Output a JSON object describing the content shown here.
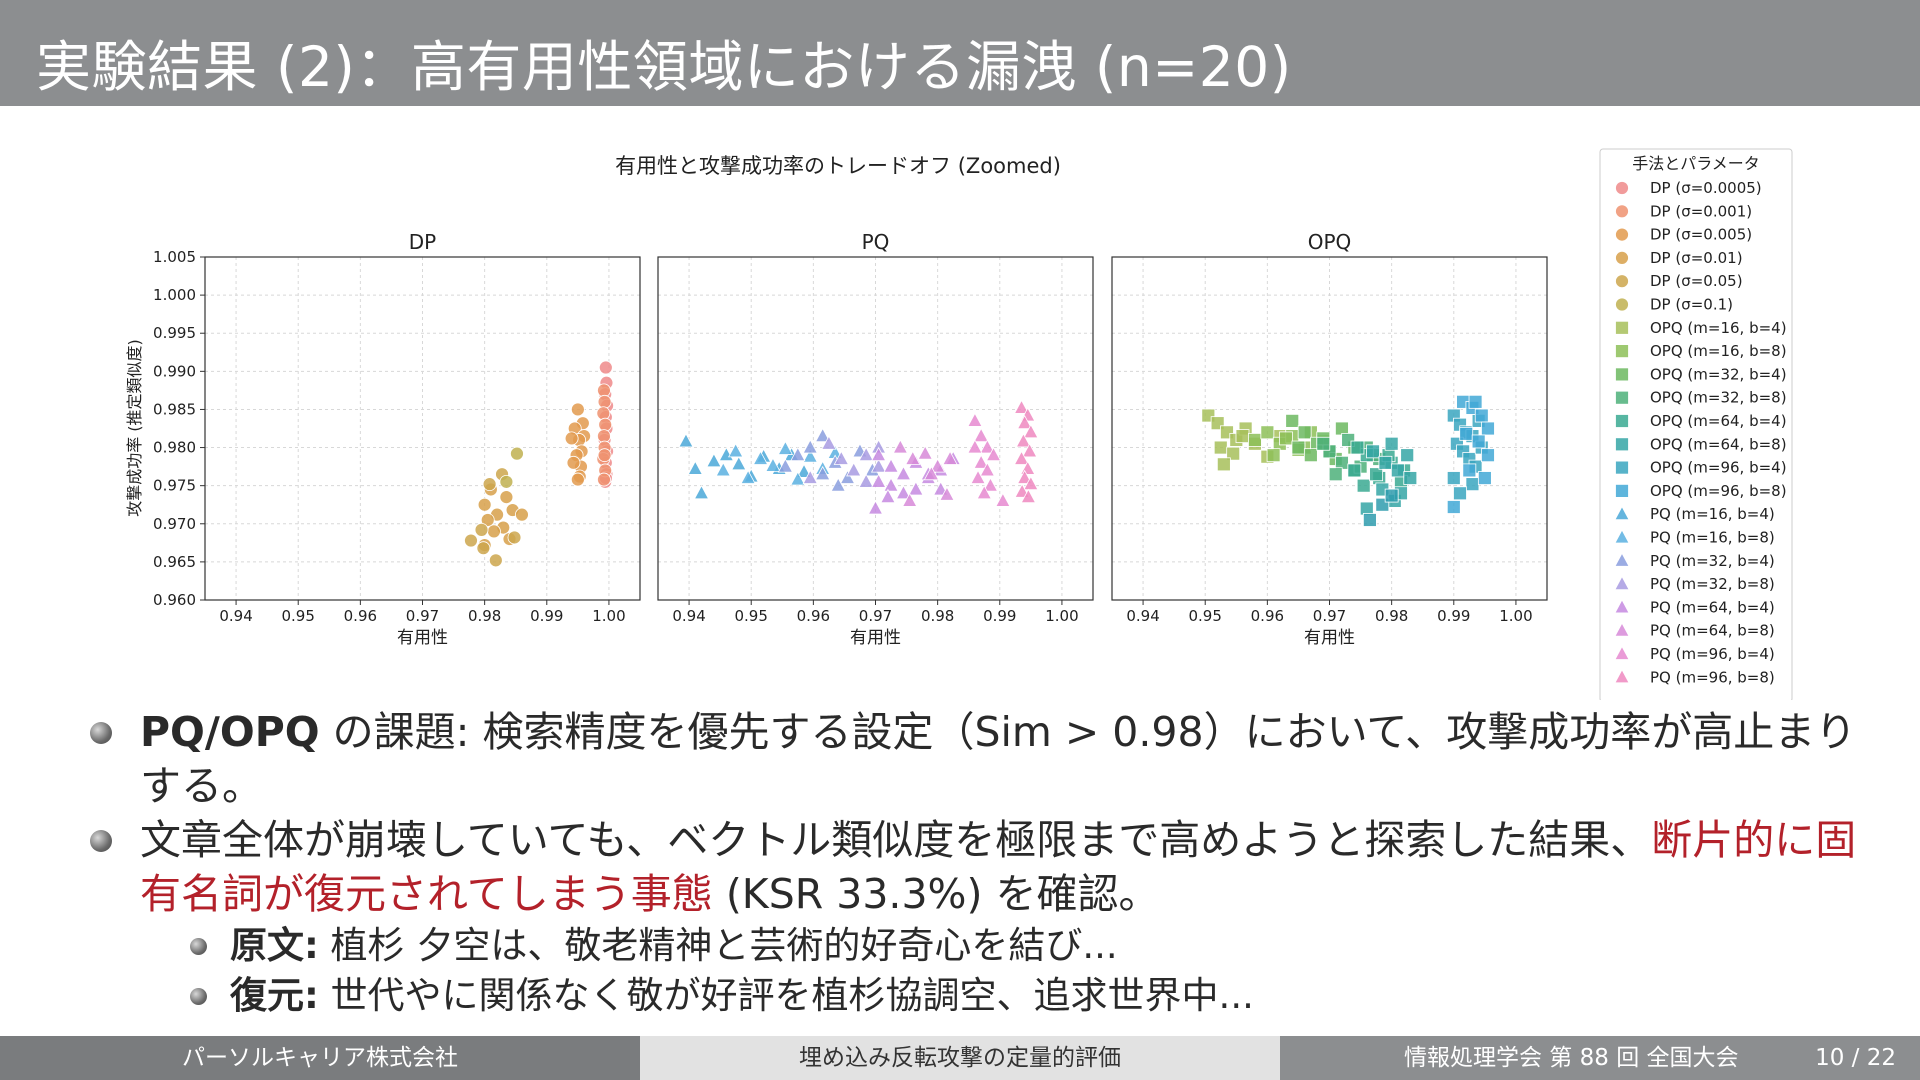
{
  "slide": {
    "title": "実験結果 (2)：高有用性領域における漏洩 (n=20)"
  },
  "bullets": [
    {
      "bold": "PQ/OPQ",
      "text": " の課題: 検索精度を優先する設定（Sim > 0.98）において、攻撃成功率が高止まりする。"
    },
    {
      "text_a": "文章全体が崩壊していても、ベクトル類似度を極限まで高めようと探索した結果、",
      "red": "断片的に固有名詞が復元されてしまう事態",
      "text_b": " (KSR 33.3%) を確認。",
      "subs": [
        {
          "label": "原文:",
          "text": " 植杉 夕空は、敬老精神と芸術的好奇心を結び..."
        },
        {
          "label": "復元:",
          "text": " 世代やに関係なく敬が好評を植杉協調空、追求世界中..."
        }
      ]
    }
  ],
  "footer": {
    "org": "パーソルキャリア株式会社",
    "topic": "埋め込み反転攻撃の定量的評価",
    "conference": "情報処理学会 第 88 回 全国大会",
    "page": "10 / 22"
  },
  "colors": {
    "title_bg": "#8c8e90",
    "highlight_red": "#b3212a"
  },
  "chart_data": {
    "type": "scatter",
    "title": "有用性と攻撃成功率のトレードオフ (Zoomed)",
    "ylabel": "攻撃成功率 (推定類似度)",
    "xlim": [
      0.935,
      1.005
    ],
    "ylim": [
      0.96,
      1.005
    ],
    "xticks": [
      "0.94",
      "0.95",
      "0.96",
      "0.97",
      "0.98",
      "0.99",
      "1.00"
    ],
    "yticks": [
      "0.960",
      "0.965",
      "0.970",
      "0.975",
      "0.980",
      "0.985",
      "0.990",
      "0.995",
      "1.000",
      "1.005"
    ],
    "grid": true,
    "legend_title": "手法とパラメータ",
    "legend_position": "right",
    "panels": [
      {
        "title": "DP",
        "xlabel": "有用性",
        "series": [
          {
            "name": "DP (σ=0.0005)",
            "color": "#ef8a8a",
            "marker": "circle",
            "x": [
              0.9995,
              0.9996,
              0.9994,
              0.9997,
              0.9995,
              0.9996,
              0.9993,
              0.9997,
              0.9995,
              0.9996,
              0.9994,
              0.9995
            ],
            "y": [
              0.9905,
              0.9885,
              0.987,
              0.9855,
              0.984,
              0.9825,
              0.981,
              0.9795,
              0.978,
              0.9765,
              0.9755,
              0.976
            ]
          },
          {
            "name": "DP (σ=0.001)",
            "color": "#ee9270",
            "marker": "circle",
            "x": [
              0.9992,
              0.9993,
              0.9991,
              0.9994,
              0.9992,
              0.9993,
              0.9991,
              0.9994,
              0.9992,
              0.9993
            ],
            "y": [
              0.9875,
              0.986,
              0.9845,
              0.983,
              0.9815,
              0.98,
              0.9785,
              0.977,
              0.9758,
              0.979
            ]
          },
          {
            "name": "DP (σ=0.005)",
            "color": "#e29a4e",
            "marker": "circle",
            "x": [
              0.995,
              0.9958,
              0.9945,
              0.996,
              0.9952,
              0.994,
              0.9956,
              0.9948,
              0.9955,
              0.9943,
              0.9953,
              0.995
            ],
            "y": [
              0.985,
              0.9832,
              0.9825,
              0.9815,
              0.981,
              0.9812,
              0.9795,
              0.979,
              0.9775,
              0.978,
              0.9762,
              0.9758
            ]
          },
          {
            "name": "DP (σ=0.01)",
            "color": "#d7a04a",
            "marker": "circle",
            "x": [
              0.981,
              0.9835,
              0.98,
              0.9845,
              0.982,
              0.9805,
              0.983,
              0.9815,
              0.984,
              0.98,
              0.986
            ],
            "y": [
              0.9745,
              0.9735,
              0.9725,
              0.9718,
              0.9712,
              0.9705,
              0.9695,
              0.969,
              0.968,
              0.9672,
              0.9712
            ]
          },
          {
            "name": "DP (σ=0.05)",
            "color": "#cca64c",
            "marker": "circle",
            "x": [
              0.9778,
              0.9798,
              0.9818,
              0.9848,
              0.9795,
              0.9828,
              0.9808
            ],
            "y": [
              0.9678,
              0.9668,
              0.9652,
              0.9682,
              0.9692,
              0.9765,
              0.9752
            ]
          },
          {
            "name": "DP (σ=0.1)",
            "color": "#c0b050",
            "marker": "circle",
            "x": [
              0.9852,
              0.9835
            ],
            "y": [
              0.9792,
              0.9755
            ]
          }
        ]
      },
      {
        "title": "PQ",
        "xlabel": "有用性",
        "series": [
          {
            "name": "PQ (m=16, b=4)",
            "color": "#4aa8d8",
            "marker": "triangle",
            "x": [
              0.9395,
              0.941,
              0.944,
              0.946,
              0.948,
              0.95,
              0.952,
              0.9545,
              0.9565,
              0.9585,
              0.942
            ],
            "y": [
              0.9808,
              0.9772,
              0.9782,
              0.979,
              0.9778,
              0.9762,
              0.9788,
              0.9772,
              0.979,
              0.9768,
              0.974
            ]
          },
          {
            "name": "PQ (m=16, b=8)",
            "color": "#5ab0e0",
            "marker": "triangle",
            "x": [
              0.9455,
              0.9475,
              0.9495,
              0.9515,
              0.9535,
              0.9555,
              0.9575,
              0.9595,
              0.9615,
              0.9635
            ],
            "y": [
              0.977,
              0.9795,
              0.976,
              0.9785,
              0.9776,
              0.9798,
              0.9758,
              0.9788,
              0.9772,
              0.9793
            ]
          },
          {
            "name": "PQ (m=32, b=4)",
            "color": "#8a9ede",
            "marker": "triangle",
            "x": [
              0.9555,
              0.9575,
              0.9595,
              0.9615,
              0.9635,
              0.9655,
              0.9675,
              0.9695,
              0.9615,
              0.964
            ],
            "y": [
              0.9775,
              0.979,
              0.98,
              0.9765,
              0.978,
              0.976,
              0.9795,
              0.977,
              0.9815,
              0.975
            ]
          },
          {
            "name": "PQ (m=32, b=8)",
            "color": "#a89be2",
            "marker": "triangle",
            "x": [
              0.9625,
              0.9645,
              0.9665,
              0.9685,
              0.9705,
              0.9685,
              0.9705,
              0.9595
            ],
            "y": [
              0.9805,
              0.9785,
              0.977,
              0.9755,
              0.9775,
              0.979,
              0.98,
              0.976
            ]
          },
          {
            "name": "PQ (m=64, b=4)",
            "color": "#c58ae0",
            "marker": "triangle",
            "x": [
              0.9705,
              0.9725,
              0.9745,
              0.9765,
              0.9785,
              0.9805,
              0.9825,
              0.9705,
              0.9725,
              0.9745,
              0.9765,
              0.9785,
              0.97,
              0.972,
              0.9805
            ],
            "y": [
              0.979,
              0.9775,
              0.9765,
              0.978,
              0.976,
              0.977,
              0.9785,
              0.9755,
              0.975,
              0.974,
              0.9745,
              0.9765,
              0.972,
              0.9735,
              0.9745
            ]
          },
          {
            "name": "PQ (m=64, b=8)",
            "color": "#d78ad8",
            "marker": "triangle",
            "x": [
              0.974,
              0.976,
              0.978,
              0.98,
              0.982,
              0.9755,
              0.979,
              0.9815
            ],
            "y": [
              0.98,
              0.9785,
              0.9792,
              0.9775,
              0.9785,
              0.973,
              0.9765,
              0.9738
            ]
          },
          {
            "name": "PQ (m=96, b=4)",
            "color": "#e68ad0",
            "marker": "triangle",
            "x": [
              0.986,
              0.987,
              0.988,
              0.989,
              0.987,
              0.988,
              0.9865,
              0.9885,
              0.9875,
              0.9905,
              0.986
            ],
            "y": [
              0.9835,
              0.9815,
              0.98,
              0.979,
              0.978,
              0.977,
              0.976,
              0.975,
              0.974,
              0.973,
              0.98
            ]
          },
          {
            "name": "PQ (m=96, b=8)",
            "color": "#ef88c0",
            "marker": "triangle",
            "x": [
              0.9935,
              0.9945,
              0.994,
              0.995,
              0.9938,
              0.9948,
              0.9935,
              0.9945,
              0.994,
              0.995,
              0.9936,
              0.9946
            ],
            "y": [
              0.9852,
              0.9842,
              0.9832,
              0.982,
              0.9808,
              0.9795,
              0.9785,
              0.9772,
              0.976,
              0.9752,
              0.9742,
              0.9735
            ]
          }
        ]
      },
      {
        "title": "OPQ",
        "xlabel": "有用性",
        "series": [
          {
            "name": "OPQ (m=16, b=4)",
            "color": "#a7c05a",
            "marker": "square",
            "x": [
              0.9505,
              0.952,
              0.9535,
              0.955,
              0.9565,
              0.9525,
              0.9545,
              0.956,
              0.958,
              0.96,
              0.953,
              0.962
            ],
            "y": [
              0.9842,
              0.9832,
              0.982,
              0.981,
              0.9825,
              0.98,
              0.9792,
              0.9815,
              0.9805,
              0.9788,
              0.9778,
              0.9815
            ]
          },
          {
            "name": "OPQ (m=16, b=8)",
            "color": "#8dbf58",
            "marker": "square",
            "x": [
              0.958,
              0.96,
              0.962,
              0.964,
              0.966,
              0.961,
              0.963,
              0.965,
              0.967,
              0.969
            ],
            "y": [
              0.981,
              0.982,
              0.9805,
              0.9815,
              0.98,
              0.979,
              0.9812,
              0.9797,
              0.982,
              0.9808
            ]
          },
          {
            "name": "OPQ (m=32, b=4)",
            "color": "#6cb860",
            "marker": "square",
            "x": [
              0.964,
              0.966,
              0.968,
              0.97,
              0.972,
              0.965,
              0.967,
              0.969,
              0.971,
              0.974
            ],
            "y": [
              0.9835,
              0.982,
              0.9805,
              0.9795,
              0.9825,
              0.98,
              0.979,
              0.9812,
              0.9785,
              0.98
            ]
          },
          {
            "name": "OPQ (m=32, b=8)",
            "color": "#4eb07a",
            "marker": "square",
            "x": [
              0.97,
              0.972,
              0.974,
              0.976,
              0.978,
              0.971,
              0.973,
              0.975,
              0.977,
              0.969
            ],
            "y": [
              0.9795,
              0.978,
              0.977,
              0.98,
              0.9785,
              0.9765,
              0.981,
              0.9775,
              0.979,
              0.9805
            ]
          },
          {
            "name": "OPQ (m=64, b=4)",
            "color": "#3aa992",
            "marker": "square",
            "x": [
              0.974,
              0.976,
              0.978,
              0.98,
              0.982,
              0.9755,
              0.9775,
              0.9795,
              0.9815,
              0.9745
            ],
            "y": [
              0.977,
              0.979,
              0.976,
              0.978,
              0.977,
              0.975,
              0.9765,
              0.979,
              0.9755,
              0.98
            ]
          },
          {
            "name": "OPQ (m=64, b=8)",
            "color": "#35a6a6",
            "marker": "square",
            "x": [
              0.977,
              0.979,
              0.981,
              0.983,
              0.9785,
              0.9805,
              0.9825,
              0.98,
              0.976,
              0.9815
            ],
            "y": [
              0.9795,
              0.978,
              0.977,
              0.976,
              0.9745,
              0.973,
              0.979,
              0.9805,
              0.972,
              0.974
            ]
          },
          {
            "name": "OPQ (m=96, b=4)",
            "color": "#3aa6c0",
            "marker": "square",
            "x": [
              0.99,
              0.991,
              0.992,
              0.993,
              0.994,
              0.9905,
              0.9915,
              0.9925,
              0.9935,
              0.9945,
              0.99,
              0.993,
              0.991
            ],
            "y": [
              0.9842,
              0.983,
              0.982,
              0.9815,
              0.9835,
              0.9805,
              0.9795,
              0.9785,
              0.9775,
              0.98,
              0.976,
              0.9752,
              0.974
            ]
          },
          {
            "name": "OPQ (m=96, b=8)",
            "color": "#42a8d6",
            "marker": "square",
            "x": [
              0.9915,
              0.993,
              0.9945,
              0.9955,
              0.992,
              0.994,
              0.9955,
              0.9925,
              0.995,
              0.99,
              0.9935
            ],
            "y": [
              0.986,
              0.9852,
              0.9842,
              0.9825,
              0.9818,
              0.9808,
              0.979,
              0.977,
              0.976,
              0.9722,
              0.986
            ]
          },
          {
            "name": "",
            "color": "#2f9cae",
            "marker": "square",
            "x": [
              0.9765,
              0.9785,
              0.98
            ],
            "y": [
              0.9705,
              0.9725,
              0.9737
            ]
          }
        ]
      }
    ]
  }
}
